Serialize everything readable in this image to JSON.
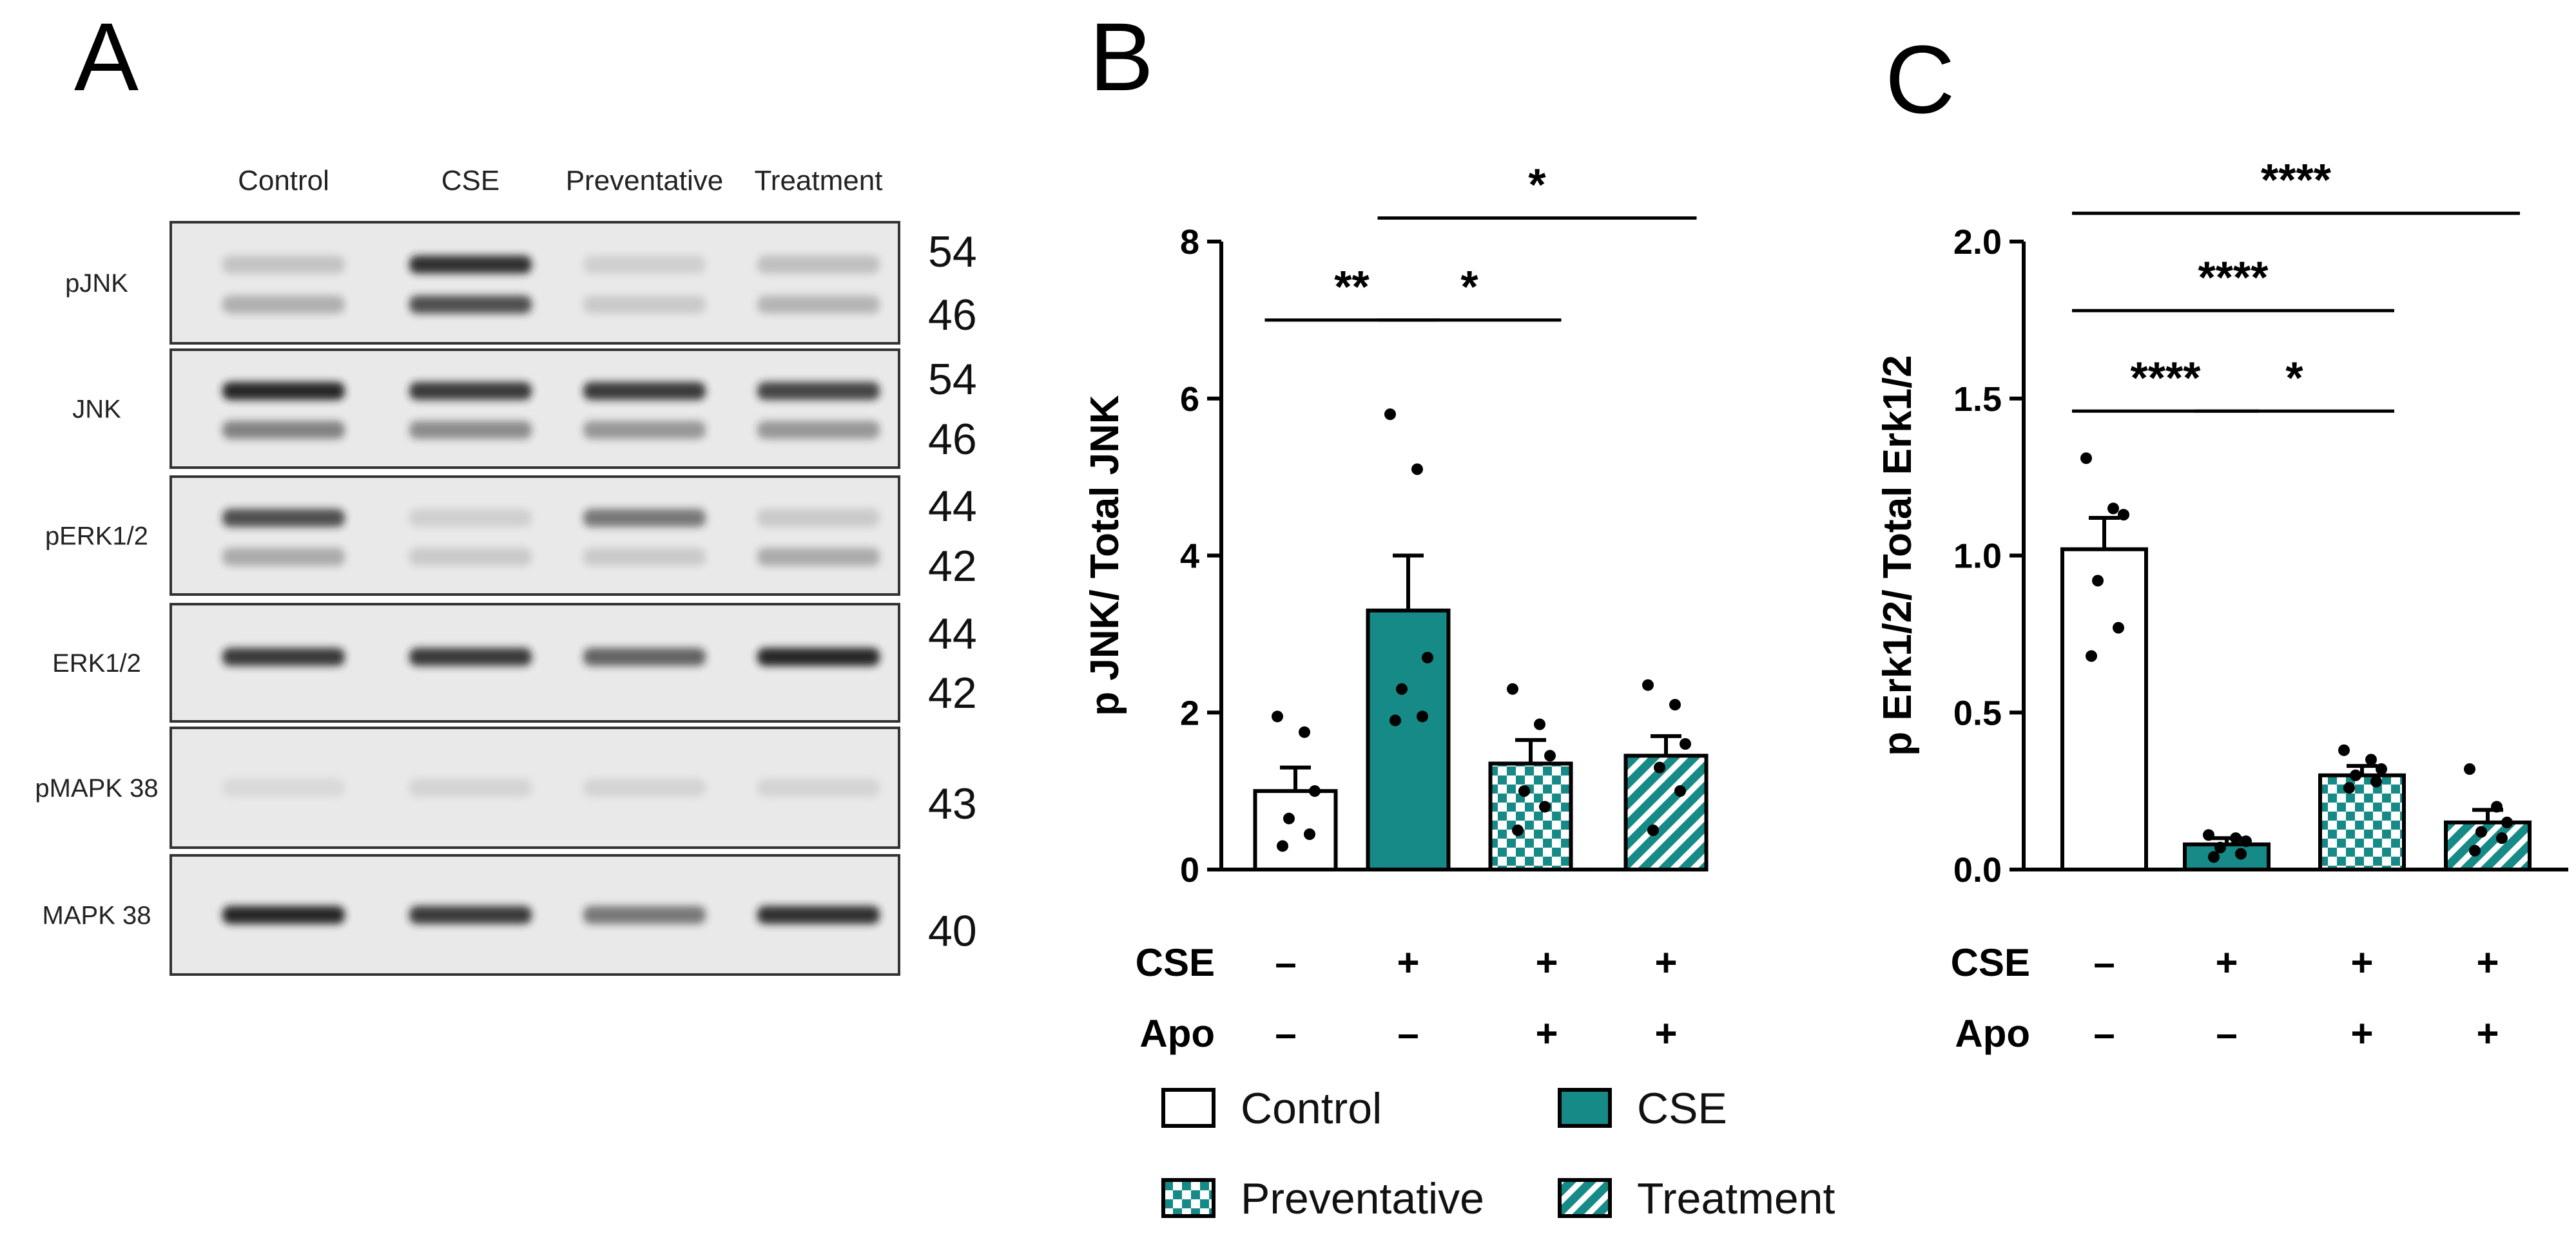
{
  "panel_letters": {
    "a": "A",
    "b": "B",
    "c": "C"
  },
  "colors": {
    "teal": "#168a87",
    "black": "#000000",
    "white": "#ffffff",
    "blot_bg": "#e9e9e9",
    "band": "#1a1a1a"
  },
  "blot": {
    "lanes": [
      "Control",
      "CSE",
      "Preventative",
      "Treatment"
    ],
    "rows": [
      {
        "label": "pJNK",
        "kda": [
          "54",
          "46"
        ],
        "bands": [
          [
            0.18,
            0.28
          ],
          [
            0.9,
            0.75
          ],
          [
            0.12,
            0.15
          ],
          [
            0.2,
            0.25
          ]
        ]
      },
      {
        "label": "JNK",
        "kda": [
          "54",
          "46"
        ],
        "bands": [
          [
            0.95,
            0.5
          ],
          [
            0.85,
            0.45
          ],
          [
            0.85,
            0.4
          ],
          [
            0.8,
            0.4
          ]
        ]
      },
      {
        "label": "pERK1/2",
        "kda": [
          "44",
          "42"
        ],
        "bands": [
          [
            0.75,
            0.3
          ],
          [
            0.12,
            0.15
          ],
          [
            0.55,
            0.15
          ],
          [
            0.15,
            0.3
          ]
        ]
      },
      {
        "label": "ERK1/2",
        "kda": [
          "44",
          "42"
        ],
        "bands": [
          [
            0.85
          ],
          [
            0.85
          ],
          [
            0.65
          ],
          [
            0.95
          ]
        ]
      },
      {
        "label": "pMAPK 38",
        "kda": [
          "43"
        ],
        "bands": [
          [
            0.08
          ],
          [
            0.1
          ],
          [
            0.1
          ],
          [
            0.1
          ]
        ]
      },
      {
        "label": "MAPK 38",
        "kda": [
          "40"
        ],
        "bands": [
          [
            0.95
          ],
          [
            0.85
          ],
          [
            0.55
          ],
          [
            0.9
          ]
        ]
      }
    ]
  },
  "conditions": {
    "cse_label": "CSE",
    "apo_label": "Apo",
    "cse": [
      "–",
      "+",
      "+",
      "+"
    ],
    "apo": [
      "–",
      "–",
      "+",
      "+"
    ]
  },
  "legend": [
    {
      "label": "Control",
      "pattern": "open"
    },
    {
      "label": "CSE",
      "pattern": "solid"
    },
    {
      "label": "Preventative",
      "pattern": "checker"
    },
    {
      "label": "Treatment",
      "pattern": "hatch"
    }
  ],
  "chart_data": [
    {
      "type": "bar",
      "panel": "B",
      "ylabel": "p JNK/ Total JNK",
      "ylim": [
        0,
        8
      ],
      "yticks": [
        0,
        2,
        4,
        6,
        8
      ],
      "yticklabels": [
        "0",
        "2",
        "4",
        "6",
        "8"
      ],
      "categories": [
        "Control",
        "CSE",
        "Preventative",
        "Treatment"
      ],
      "values": [
        1.0,
        3.3,
        1.35,
        1.45
      ],
      "errors": [
        0.3,
        0.7,
        0.3,
        0.25
      ],
      "points": [
        [
          1.95,
          1.75,
          1.0,
          0.65,
          0.45,
          0.3
        ],
        [
          5.8,
          5.1,
          2.7,
          2.3,
          1.95,
          1.9
        ],
        [
          2.3,
          1.85,
          1.45,
          1.0,
          0.8,
          0.5
        ],
        [
          2.35,
          2.1,
          1.6,
          1.3,
          1.0,
          0.5
        ]
      ],
      "significance": [
        {
          "from": 0,
          "to": 1,
          "label": "**",
          "y": 7.0
        },
        {
          "from": 1,
          "to": 2,
          "label": "*",
          "y": 7.0
        },
        {
          "from": 1,
          "to": 3,
          "label": "*",
          "y": 8.3
        }
      ]
    },
    {
      "type": "bar",
      "panel": "C",
      "ylabel": "p Erk1/2/ Total Erk1/2",
      "ylim": [
        0,
        2
      ],
      "yticks": [
        0,
        0.5,
        1,
        1.5,
        2
      ],
      "yticklabels": [
        "0.0",
        "0.5",
        "1.0",
        "1.5",
        "2.0"
      ],
      "categories": [
        "Control",
        "CSE",
        "Preventative",
        "Treatment"
      ],
      "values": [
        1.02,
        0.08,
        0.3,
        0.15
      ],
      "errors": [
        0.1,
        0.02,
        0.03,
        0.04
      ],
      "points": [
        [
          1.31,
          1.15,
          1.13,
          0.92,
          0.77,
          0.68
        ],
        [
          0.11,
          0.1,
          0.09,
          0.07,
          0.05,
          0.04
        ],
        [
          0.38,
          0.35,
          0.32,
          0.3,
          0.28,
          0.26
        ],
        [
          0.32,
          0.2,
          0.15,
          0.12,
          0.1,
          0.06
        ]
      ],
      "significance": [
        {
          "from": 0,
          "to": 1,
          "label": "****",
          "y": 1.46
        },
        {
          "from": 1,
          "to": 2,
          "label": "*",
          "y": 1.46
        },
        {
          "from": 0,
          "to": 2,
          "label": "****",
          "y": 1.78
        },
        {
          "from": 0,
          "to": 3,
          "label": "****",
          "y": 2.09
        }
      ]
    }
  ]
}
